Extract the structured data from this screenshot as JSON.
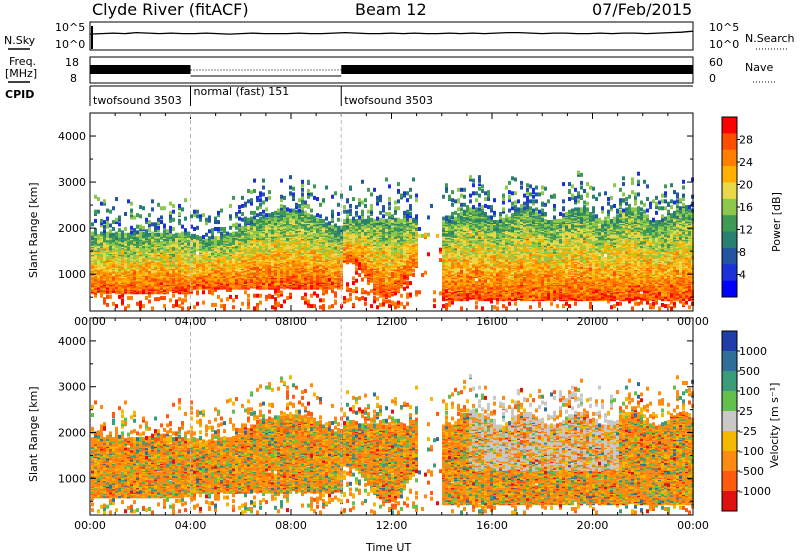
{
  "header": {
    "site": "Clyde River (fitACF)",
    "beam": "Beam 12",
    "date": "07/Feb/2015"
  },
  "colors": {
    "frame": "#000000",
    "no_data": "#ffffff"
  },
  "chart_data": [
    {
      "type": "line",
      "panel": "noise",
      "left_label": "N.Sky",
      "right_label": "N.Search",
      "left_ticks": [
        "10^5",
        "10^0"
      ],
      "right_ticks": [
        "10^5",
        "10^0"
      ],
      "x_ticks": [
        "00:00",
        "04:00",
        "08:00",
        "12:00",
        "16:00",
        "20:00",
        "00:00"
      ],
      "series": [
        {
          "y": [
            2.9,
            3.0,
            3.1,
            3.0,
            3.2,
            3.1,
            3.0,
            3.1,
            3.0,
            3.0,
            3.1,
            3.0,
            2.9,
            3.0,
            3.1,
            3.0,
            3.0,
            3.0,
            3.1,
            3.0,
            3.0,
            3.1,
            3.2,
            3.1,
            3.0,
            3.0,
            3.1,
            3.0,
            3.1,
            3.0,
            3.0,
            3.1,
            3.0,
            3.1,
            3.0,
            3.1,
            3.2,
            3.2,
            3.1,
            3.0,
            3.1,
            3.1,
            3.0,
            3.0,
            3.1,
            3.0,
            3.1,
            3.1,
            3.0,
            3.1,
            3.2,
            3.3,
            3.5
          ]
        }
      ]
    },
    {
      "type": "line",
      "panel": "frequency",
      "left_label": "Freq.",
      "left_unit": "[MHz]",
      "right_label": "Nave",
      "left_ticks": [
        "18",
        "8"
      ],
      "right_ticks": [
        "60",
        "0"
      ],
      "segments": [
        {
          "from_hour": 0.0,
          "to_hour": 4.0,
          "style": "dense"
        },
        {
          "from_hour": 4.0,
          "to_hour": 10.0,
          "style": "dotted"
        },
        {
          "from_hour": 10.0,
          "to_hour": 24.0,
          "style": "dense"
        }
      ]
    },
    {
      "type": "table",
      "panel": "cpid",
      "label": "CPID",
      "programs": [
        {
          "name": "twofsound 3503",
          "start_hour": 0.0,
          "end_hour": 4.0
        },
        {
          "name": "normal (fast) 151",
          "start_hour": 4.0,
          "end_hour": 10.0
        },
        {
          "name": "twofsound 3503",
          "start_hour": 10.0,
          "end_hour": 24.0
        }
      ]
    },
    {
      "type": "heatmap",
      "panel": "power",
      "xlabel": "",
      "ylabel": "Slant Range [km]",
      "xlim": [
        0,
        24
      ],
      "ylim": [
        200,
        4500
      ],
      "y_ticks": [
        "1000",
        "2000",
        "3000",
        "4000"
      ],
      "colorbar_label": "Power [dB]",
      "colorbar_ticks": [
        "28",
        "24",
        "20",
        "16",
        "12",
        "8",
        "4"
      ],
      "colorbar": [
        "#ff0000",
        "#ff4d00",
        "#ff8000",
        "#ffb000",
        "#e8d84a",
        "#8cc84b",
        "#3f9a56",
        "#2a8070",
        "#2455a0",
        "#1a32d8",
        "#0000ff"
      ]
    },
    {
      "type": "heatmap",
      "panel": "velocity",
      "xlabel": "Time UT",
      "ylabel": "Slant Range [km]",
      "xlim": [
        0,
        24
      ],
      "ylim": [
        200,
        4500
      ],
      "y_ticks": [
        "1000",
        "2000",
        "3000",
        "4000"
      ],
      "x_ticks": [
        "00:00",
        "04:00",
        "08:00",
        "12:00",
        "16:00",
        "20:00",
        "00:00"
      ],
      "colorbar_label": "Velocity [m s⁻¹]",
      "colorbar_ticks": [
        "1000",
        "500",
        "100",
        "25",
        "-25",
        "-100",
        "-500",
        "-1000"
      ],
      "colorbar": [
        "#1f3ea8",
        "#2f6f9a",
        "#3a9c7a",
        "#63c04a",
        "#c8c8c8",
        "#f5b800",
        "#ff8a10",
        "#ff5a10",
        "#e01010"
      ],
      "ground_scatter_color": "#c8c8c8"
    }
  ]
}
